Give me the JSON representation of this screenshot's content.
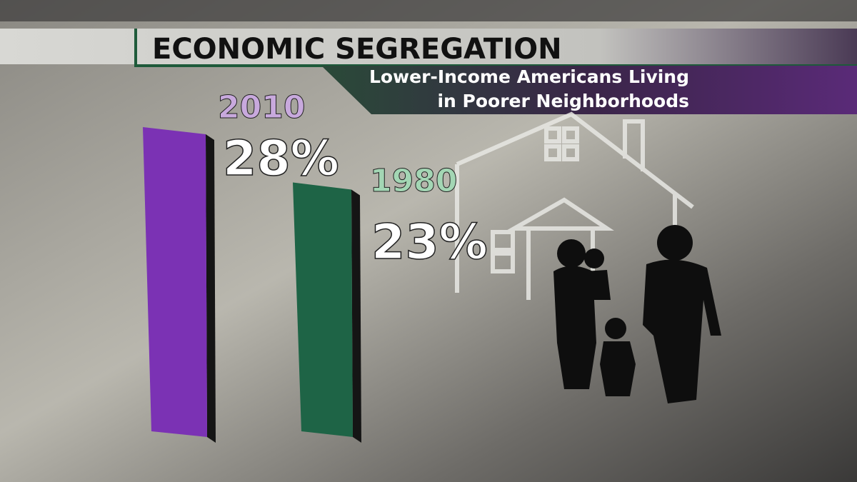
{
  "chart_data": {
    "type": "bar",
    "title": "ECONOMIC SEGREGATION",
    "subtitle": [
      "Lower-Income Americans Living",
      "in Poorer Neighborhoods"
    ],
    "categories": [
      "2010",
      "1980"
    ],
    "values": [
      28,
      23
    ],
    "value_labels": [
      "28%",
      "23%"
    ],
    "colors": [
      "#7b32b4",
      "#1e6446"
    ],
    "category_colors": [
      "#c8a9dd",
      "#a3d6b4"
    ]
  }
}
